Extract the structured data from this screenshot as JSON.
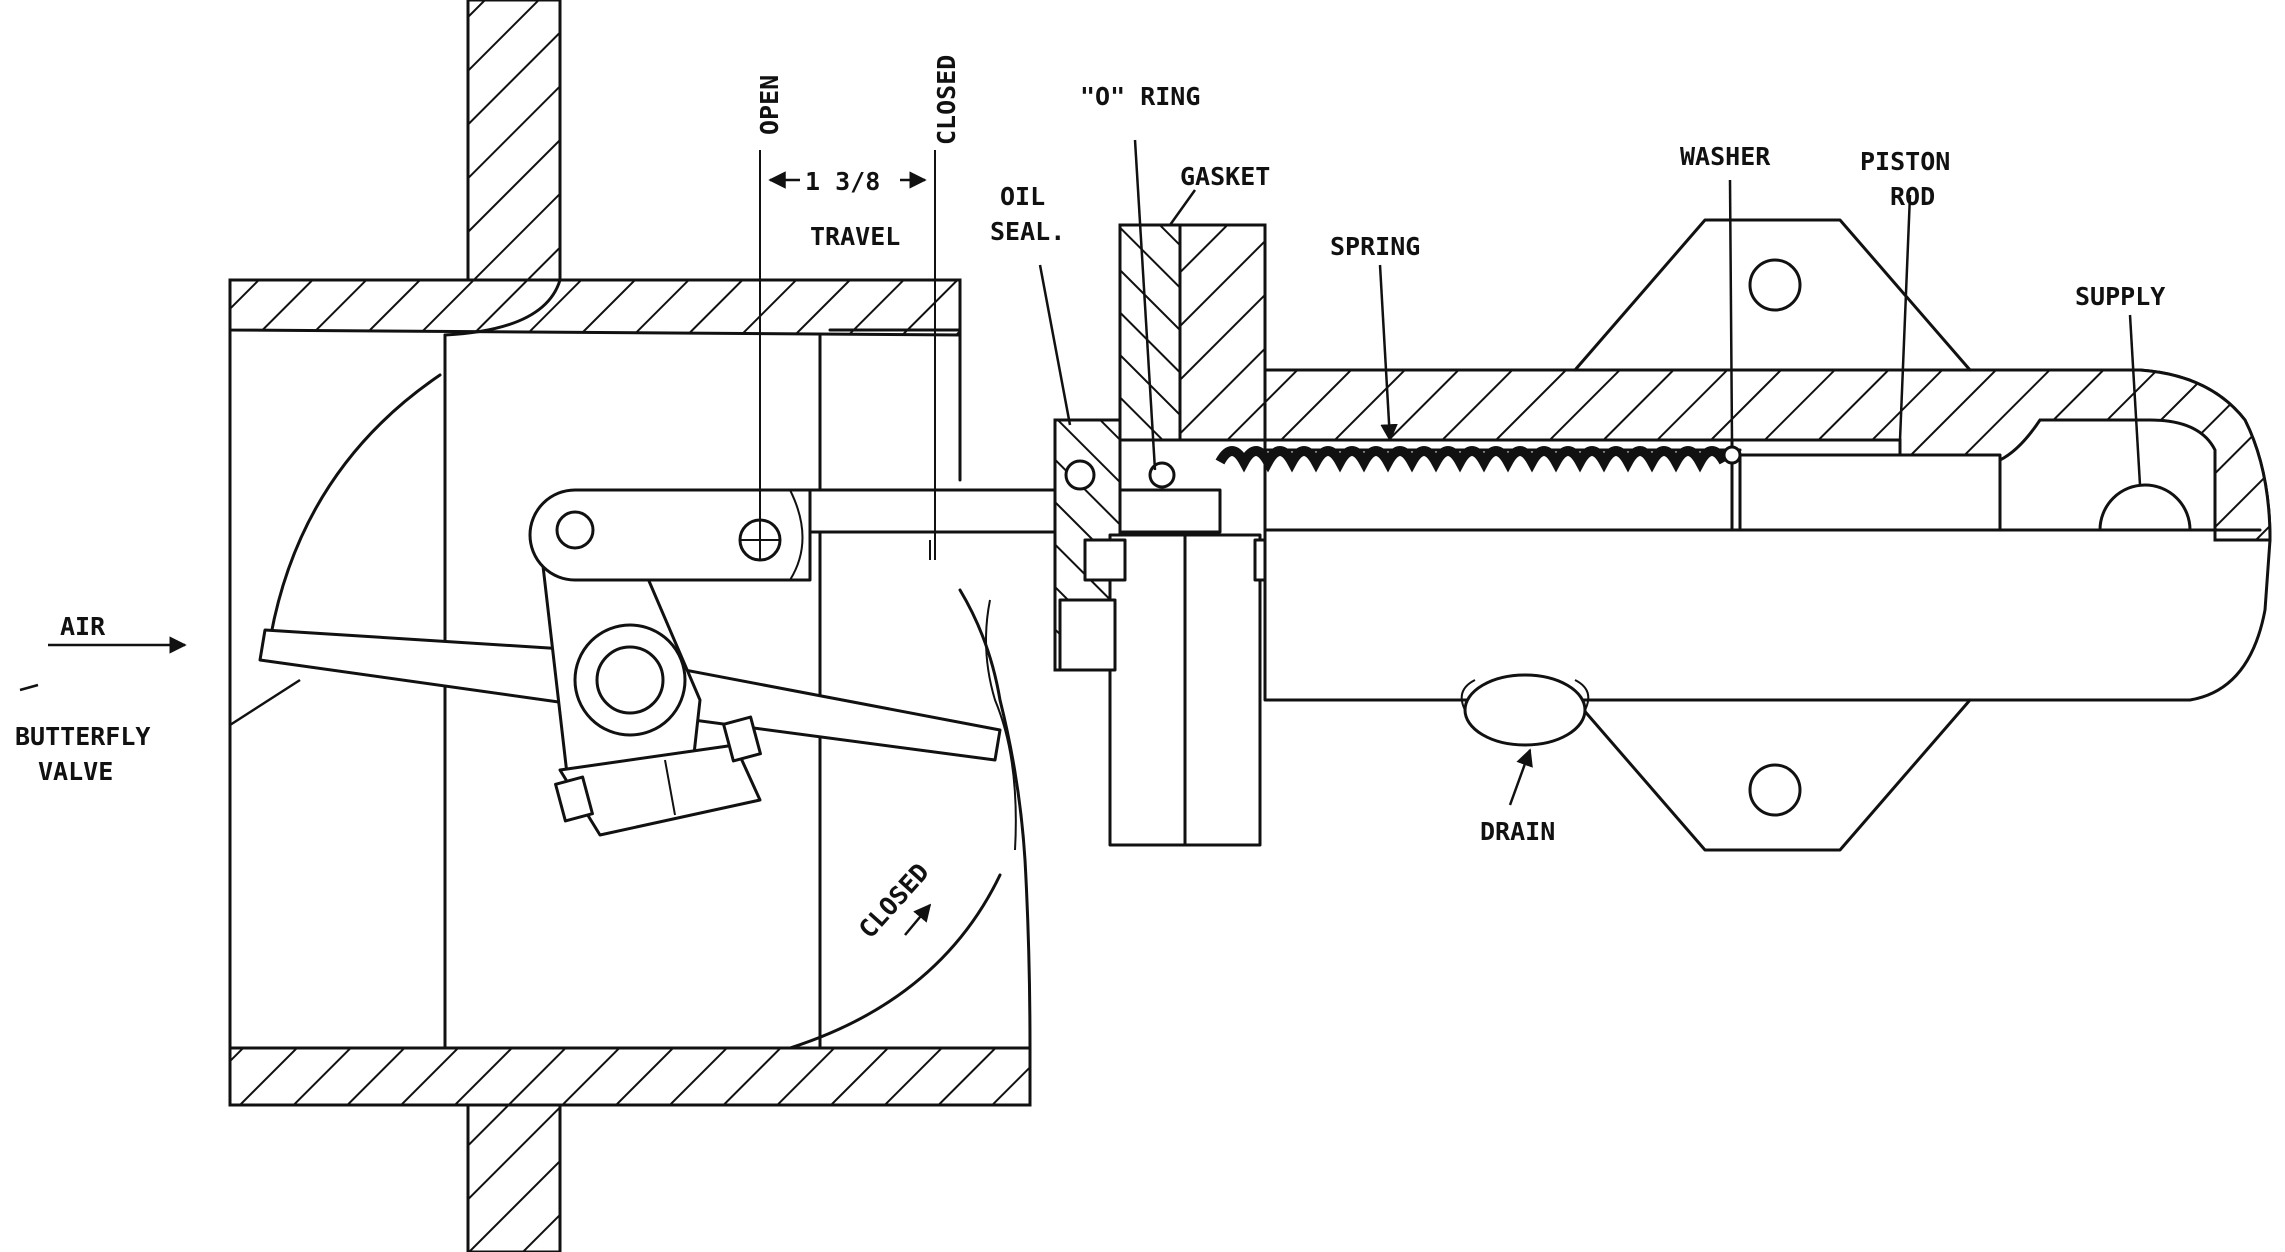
{
  "labels": {
    "open": "OPEN",
    "closed_top": "CLOSED",
    "travel_dim": "1 3/8",
    "travel": "TRAVEL",
    "o_ring": "\"O\" RING",
    "oil": "OIL",
    "seal": "SEAL.",
    "gasket": "GASKET",
    "spring": "SPRING",
    "washer": "WASHER",
    "piston": "PISTON",
    "rod": "ROD",
    "supply": "SUPPLY",
    "air": "AIR",
    "butterfly": "BUTTERFLY",
    "valve": "VALVE",
    "drain": "DRAIN",
    "closed_arc": "CLOSED"
  },
  "colors": {
    "ink": "#111111",
    "paper": "#ffffff"
  }
}
